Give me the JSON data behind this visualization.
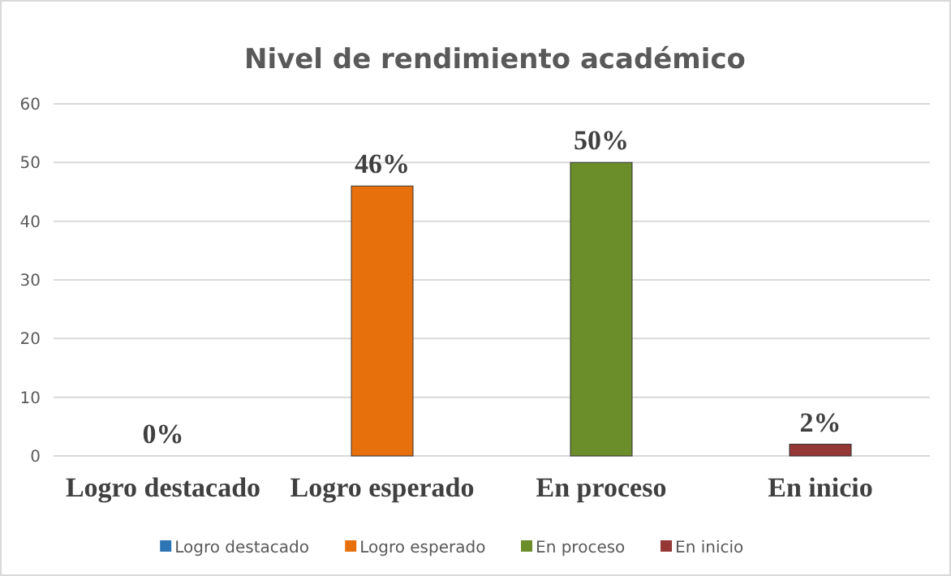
{
  "chart_data": {
    "type": "bar",
    "title": "Nivel de rendimiento académico",
    "categories": [
      "Logro destacado",
      "Logro esperado",
      "En proceso",
      "En inicio"
    ],
    "series": [
      {
        "name": "Logro destacado",
        "color": "#2e75b6",
        "values": [
          0,
          null,
          null,
          null
        ],
        "value_labels": [
          "0%",
          null,
          null,
          null
        ]
      },
      {
        "name": "Logro esperado",
        "color": "#e8700c",
        "values": [
          null,
          46,
          null,
          null
        ],
        "value_labels": [
          null,
          "46%",
          null,
          null
        ]
      },
      {
        "name": "En proceso",
        "color": "#6b8e2a",
        "values": [
          null,
          null,
          50,
          null
        ],
        "value_labels": [
          null,
          null,
          "50%",
          null
        ]
      },
      {
        "name": "En inicio",
        "color": "#953735",
        "values": [
          null,
          null,
          null,
          2
        ],
        "value_labels": [
          null,
          null,
          null,
          "2%"
        ]
      }
    ],
    "ylim": [
      0,
      60
    ],
    "yticks": [
      0,
      10,
      20,
      30,
      40,
      50,
      60
    ],
    "grid": "y",
    "legend": "bottom"
  }
}
